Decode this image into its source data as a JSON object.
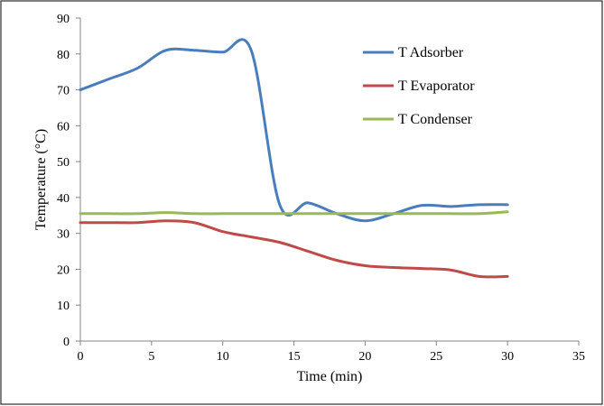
{
  "chart_data": {
    "type": "line",
    "xlabel": "Time (min)",
    "ylabel": "Temperature (°C)",
    "xlim": [
      0,
      35
    ],
    "ylim": [
      0,
      90
    ],
    "x_ticks": [
      0,
      5,
      10,
      15,
      20,
      25,
      30,
      35
    ],
    "y_ticks": [
      0,
      10,
      20,
      30,
      40,
      50,
      60,
      70,
      80,
      90
    ],
    "grid": false,
    "legend_position": "top-right",
    "series": [
      {
        "name": "T Adsorber",
        "color": "#4A7EBB",
        "x": [
          0,
          2,
          4,
          6,
          8,
          10,
          12,
          14,
          16,
          18,
          20,
          22,
          24,
          26,
          28,
          30
        ],
        "values": [
          70,
          73,
          76,
          81,
          81,
          80.5,
          81,
          38,
          38.5,
          35.5,
          33.5,
          35.5,
          37.8,
          37.5,
          38,
          38
        ]
      },
      {
        "name": "T Evaporator",
        "color": "#BE4B48",
        "x": [
          0,
          2,
          4,
          6,
          8,
          10,
          12,
          14,
          16,
          18,
          20,
          22,
          24,
          26,
          28,
          30
        ],
        "values": [
          33,
          33,
          33,
          33.5,
          33,
          30.5,
          29,
          27.5,
          25,
          22.5,
          21,
          20.5,
          20.2,
          19.8,
          18,
          18
        ]
      },
      {
        "name": "T Condenser",
        "color": "#98B954",
        "x": [
          0,
          2,
          4,
          6,
          8,
          10,
          12,
          14,
          16,
          18,
          20,
          22,
          24,
          26,
          28,
          30
        ],
        "values": [
          35.5,
          35.5,
          35.5,
          35.8,
          35.5,
          35.5,
          35.5,
          35.5,
          35.5,
          35.5,
          35.5,
          35.5,
          35.5,
          35.5,
          35.5,
          36
        ]
      }
    ]
  }
}
